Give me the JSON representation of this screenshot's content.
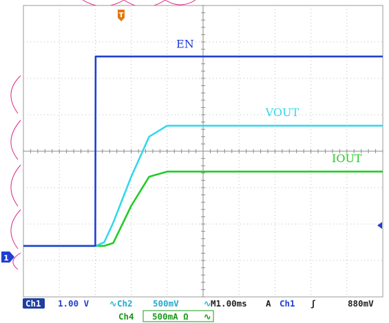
{
  "chart_data": {
    "type": "line",
    "x": [
      0,
      1,
      2,
      2.01,
      2.25,
      2.5,
      3,
      3.5,
      4,
      4.5,
      5,
      6,
      7,
      8,
      9,
      10
    ],
    "series": [
      {
        "name": "EN",
        "color": "#1f3fd2",
        "values": [
          0,
          0,
          0,
          2.6,
          2.6,
          2.6,
          2.6,
          2.6,
          2.6,
          2.6,
          2.6,
          2.6,
          2.6,
          2.6,
          2.6,
          2.6
        ]
      },
      {
        "name": "VOUT",
        "color": "#33d8ec",
        "values": [
          0,
          0,
          0,
          0,
          0.05,
          0.32,
          0.95,
          1.5,
          1.65,
          1.65,
          1.65,
          1.65,
          1.65,
          1.65,
          1.65,
          1.65
        ]
      },
      {
        "name": "IOUT",
        "color": "#22cc22",
        "values": [
          0,
          0,
          0,
          0,
          0,
          0.04,
          0.55,
          0.95,
          1.02,
          1.02,
          1.02,
          1.02,
          1.02,
          1.02,
          1.02,
          1.02
        ]
      }
    ],
    "xlim": [
      0,
      10
    ],
    "ylim": [
      -0.7,
      3.3
    ],
    "grid": true,
    "trigger_marker": "T",
    "ground_marker": "1"
  },
  "status_bar": {
    "ch1_tag": "Ch1",
    "ch1_scale": "1.00 V",
    "ch2_tag": "Ch2",
    "ch2_scale": "500mV",
    "timebase": "M1.00ms",
    "trigger_mode": "A",
    "trigger_source": "Ch1",
    "trigger_slope": "ʃ",
    "trigger_level": "880mV",
    "ch4_tag": "Ch4",
    "ch4_scale": "500mA Ω"
  },
  "colors": {
    "ch1": "#1f3fd2",
    "ch2": "#33d8ec",
    "ch4": "#22cc22",
    "trigger": "#e07a10",
    "grid": "#b8b8b8",
    "tag_bg": "#1f3fa0"
  }
}
